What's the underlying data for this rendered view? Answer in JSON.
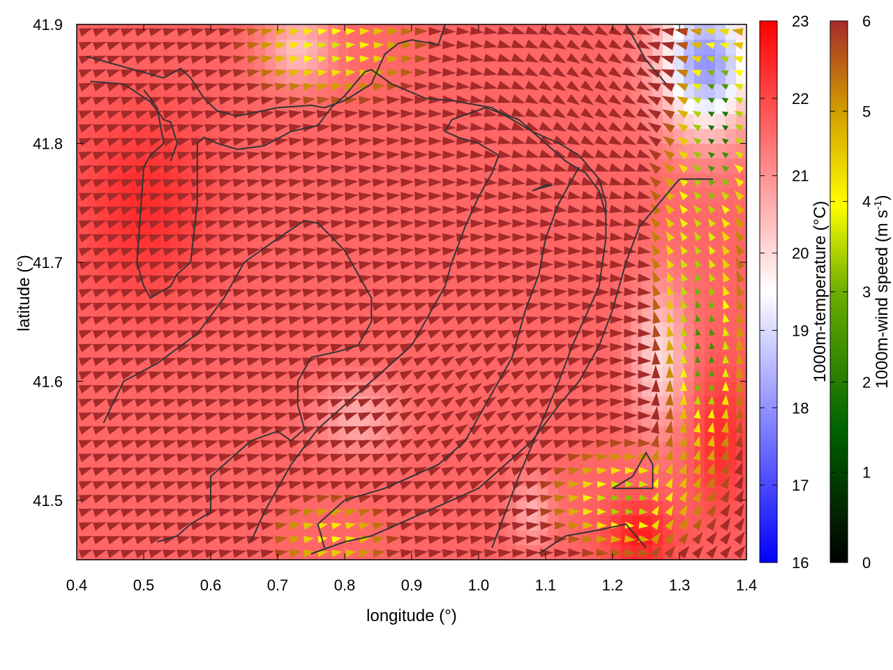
{
  "chart_data": {
    "type": "heatmap",
    "title": "",
    "xlabel": "longitude (°)",
    "ylabel": "latitude (°)",
    "xlim": [
      0.4,
      1.4
    ],
    "ylim": [
      41.45,
      41.9
    ],
    "xticks": [
      "0.4",
      "0.5",
      "0.6",
      "0.7",
      "0.8",
      "0.9",
      "1.0",
      "1.1",
      "1.2",
      "1.3",
      "1.4"
    ],
    "yticks": [
      "41.5",
      "41.6",
      "41.7",
      "41.8",
      "41.9"
    ],
    "layers": [
      "temperature field",
      "wind vectors",
      "contour lines"
    ],
    "temperature_colorbar": {
      "label": "1000m-temperature (°C)",
      "range": [
        16,
        23
      ],
      "ticks": [
        "16",
        "17",
        "18",
        "19",
        "20",
        "21",
        "22",
        "23"
      ],
      "colors": [
        "#0000ff",
        "#ffffff",
        "#ff0000"
      ]
    },
    "wind_colorbar": {
      "label_prefix": "1000m-wind speed (m s",
      "label_sup": "-1",
      "label_suffix": ")",
      "range": [
        0,
        6
      ],
      "ticks": [
        "0",
        "1",
        "2",
        "3",
        "4",
        "5",
        "6"
      ],
      "colors": [
        "#000000",
        "#006400",
        "#6cae00",
        "#ffff00",
        "#d2a000",
        "#a52a2a"
      ]
    },
    "contours": [
      {
        "points": [
          [
            0.415,
            41.873
          ],
          [
            0.53,
            41.855
          ],
          [
            0.555,
            41.863
          ],
          [
            0.57,
            41.855
          ],
          [
            0.59,
            41.838
          ],
          [
            0.61,
            41.827
          ],
          [
            0.64,
            41.823
          ],
          [
            0.7,
            41.83
          ],
          [
            0.75,
            41.832
          ],
          [
            0.77,
            41.83
          ],
          [
            0.8,
            41.836
          ],
          [
            0.84,
            41.85
          ],
          [
            0.86,
            41.875
          ],
          [
            0.88,
            41.884
          ],
          [
            0.9,
            41.887
          ],
          [
            0.94,
            41.883
          ],
          [
            0.95,
            41.9
          ]
        ]
      },
      {
        "points": [
          [
            0.42,
            41.852
          ],
          [
            0.47,
            41.85
          ],
          [
            0.51,
            41.835
          ],
          [
            0.53,
            41.82
          ],
          [
            0.54,
            41.818
          ],
          [
            0.55,
            41.8
          ],
          [
            0.54,
            41.785
          ]
        ]
      },
      {
        "points": [
          [
            0.5,
            41.845
          ],
          [
            0.52,
            41.83
          ],
          [
            0.53,
            41.8
          ],
          [
            0.51,
            41.79
          ],
          [
            0.5,
            41.78
          ],
          [
            0.49,
            41.7
          ],
          [
            0.5,
            41.68
          ],
          [
            0.51,
            41.67
          ],
          [
            0.54,
            41.68
          ],
          [
            0.55,
            41.69
          ],
          [
            0.57,
            41.7
          ],
          [
            0.58,
            41.75
          ],
          [
            0.58,
            41.8
          ],
          [
            0.59,
            41.805
          ],
          [
            0.61,
            41.8
          ],
          [
            0.64,
            41.795
          ],
          [
            0.68,
            41.798
          ],
          [
            0.72,
            41.81
          ],
          [
            0.76,
            41.815
          ],
          [
            0.78,
            41.83
          ],
          [
            0.8,
            41.84
          ],
          [
            0.83,
            41.86
          ],
          [
            0.84,
            41.862
          ],
          [
            0.87,
            41.85
          ],
          [
            0.92,
            41.838
          ],
          [
            0.96,
            41.836
          ],
          [
            1.02,
            41.83
          ],
          [
            1.08,
            41.81
          ],
          [
            1.12,
            41.8
          ],
          [
            1.15,
            41.79
          ],
          [
            1.18,
            41.77
          ],
          [
            1.19,
            41.75
          ],
          [
            1.19,
            41.72
          ],
          [
            1.18,
            41.68
          ],
          [
            1.14,
            41.63
          ],
          [
            1.12,
            41.6
          ],
          [
            1.09,
            41.56
          ],
          [
            1.06,
            41.52
          ],
          [
            1.04,
            41.49
          ],
          [
            1.02,
            41.46
          ]
        ]
      },
      {
        "points": [
          [
            0.44,
            41.565
          ],
          [
            0.47,
            41.6
          ],
          [
            0.52,
            41.615
          ],
          [
            0.58,
            41.64
          ],
          [
            0.62,
            41.67
          ],
          [
            0.65,
            41.7
          ],
          [
            0.7,
            41.72
          ],
          [
            0.74,
            41.735
          ],
          [
            0.76,
            41.733
          ],
          [
            0.8,
            41.71
          ],
          [
            0.82,
            41.69
          ],
          [
            0.84,
            41.67
          ],
          [
            0.84,
            41.65
          ],
          [
            0.82,
            41.63
          ],
          [
            0.79,
            41.625
          ],
          [
            0.75,
            41.62
          ],
          [
            0.73,
            41.6
          ],
          [
            0.73,
            41.58
          ],
          [
            0.74,
            41.56
          ],
          [
            0.72,
            41.55
          ],
          [
            0.7,
            41.558
          ],
          [
            0.66,
            41.55
          ],
          [
            0.62,
            41.53
          ],
          [
            0.6,
            41.52
          ],
          [
            0.6,
            41.49
          ],
          [
            0.57,
            41.48
          ],
          [
            0.55,
            41.47
          ],
          [
            0.52,
            41.465
          ]
        ]
      },
      {
        "points": [
          [
            0.66,
            41.465
          ],
          [
            0.68,
            41.49
          ],
          [
            0.72,
            41.53
          ],
          [
            0.76,
            41.56
          ],
          [
            0.8,
            41.58
          ],
          [
            0.84,
            41.6
          ],
          [
            0.88,
            41.62
          ],
          [
            0.9,
            41.63
          ],
          [
            0.92,
            41.65
          ],
          [
            0.95,
            41.68
          ],
          [
            0.96,
            41.7
          ],
          [
            0.98,
            41.73
          ],
          [
            1.0,
            41.755
          ],
          [
            1.02,
            41.775
          ],
          [
            1.03,
            41.79
          ],
          [
            1.0,
            41.8
          ],
          [
            0.97,
            41.805
          ],
          [
            0.95,
            41.81
          ],
          [
            0.96,
            41.82
          ],
          [
            1.01,
            41.83
          ],
          [
            1.06,
            41.82
          ],
          [
            1.1,
            41.8
          ],
          [
            1.13,
            41.785
          ],
          [
            1.16,
            41.775
          ],
          [
            1.18,
            41.76
          ],
          [
            1.19,
            41.74
          ]
        ]
      },
      {
        "points": [
          [
            0.77,
            41.46
          ],
          [
            0.76,
            41.48
          ],
          [
            0.8,
            41.5
          ],
          [
            0.86,
            41.51
          ],
          [
            0.9,
            41.52
          ],
          [
            0.94,
            41.53
          ],
          [
            0.98,
            41.55
          ],
          [
            1.0,
            41.57
          ],
          [
            1.02,
            41.59
          ],
          [
            1.05,
            41.62
          ],
          [
            1.07,
            41.66
          ],
          [
            1.09,
            41.69
          ],
          [
            1.1,
            41.72
          ],
          [
            1.12,
            41.75
          ],
          [
            1.14,
            41.77
          ],
          [
            1.15,
            41.78
          ]
        ]
      },
      {
        "points": [
          [
            0.75,
            41.455
          ],
          [
            0.8,
            41.465
          ],
          [
            0.84,
            41.47
          ],
          [
            0.88,
            41.48
          ],
          [
            0.92,
            41.49
          ],
          [
            0.96,
            41.5
          ],
          [
            1.0,
            41.51
          ],
          [
            1.04,
            41.53
          ],
          [
            1.08,
            41.55
          ],
          [
            1.12,
            41.58
          ],
          [
            1.15,
            41.6
          ],
          [
            1.18,
            41.63
          ],
          [
            1.2,
            41.66
          ],
          [
            1.22,
            41.7
          ],
          [
            1.24,
            41.73
          ],
          [
            1.27,
            41.75
          ],
          [
            1.3,
            41.77
          ],
          [
            1.35,
            41.77
          ]
        ]
      },
      {
        "points": [
          [
            1.09,
            41.455
          ],
          [
            1.13,
            41.47
          ],
          [
            1.18,
            41.475
          ],
          [
            1.22,
            41.48
          ],
          [
            1.25,
            41.46
          ]
        ]
      },
      {
        "points": [
          [
            1.2,
            41.51
          ],
          [
            1.26,
            41.51
          ],
          [
            1.26,
            41.53
          ],
          [
            1.25,
            41.54
          ],
          [
            1.23,
            41.52
          ],
          [
            1.2,
            41.51
          ]
        ]
      },
      {
        "points": [
          [
            1.08,
            41.76
          ],
          [
            1.1,
            41.765
          ],
          [
            1.11,
            41.765
          ],
          [
            1.09,
            41.762
          ],
          [
            1.08,
            41.76
          ]
        ]
      },
      {
        "points": [
          [
            1.22,
            41.9
          ],
          [
            1.25,
            41.87
          ],
          [
            1.28,
            41.85
          ]
        ]
      }
    ]
  }
}
